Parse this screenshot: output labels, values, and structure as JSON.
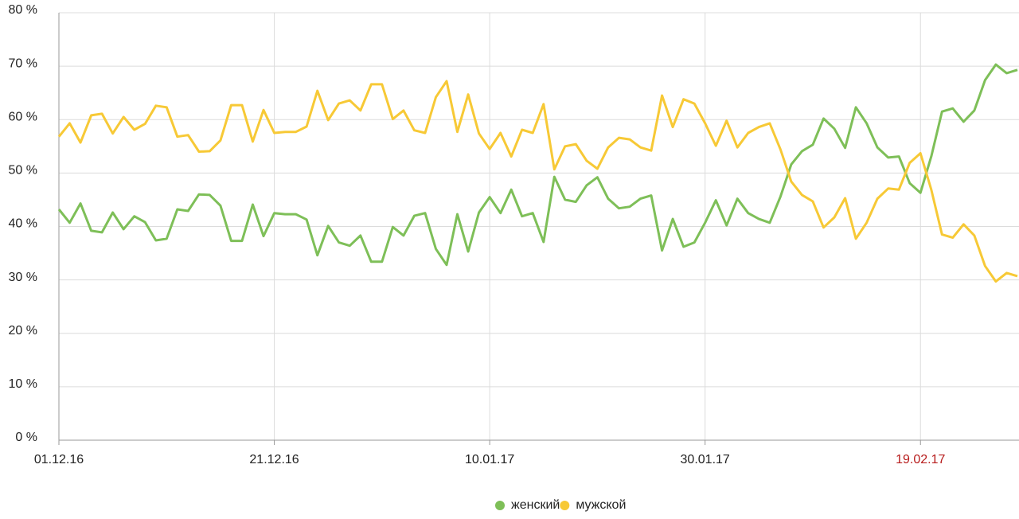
{
  "chart_data": {
    "type": "line",
    "categories": [
      "01.12.16",
      null,
      null,
      null,
      null,
      null,
      null,
      null,
      null,
      null,
      null,
      null,
      null,
      null,
      null,
      null,
      null,
      null,
      null,
      null,
      "21.12.16",
      null,
      null,
      null,
      null,
      null,
      null,
      null,
      null,
      null,
      null,
      null,
      null,
      null,
      null,
      null,
      null,
      null,
      null,
      null,
      "10.01.17",
      null,
      null,
      null,
      null,
      null,
      null,
      null,
      null,
      null,
      null,
      null,
      null,
      null,
      null,
      null,
      null,
      null,
      null,
      null,
      "30.01.17",
      null,
      null,
      null,
      null,
      null,
      null,
      null,
      null,
      null,
      null,
      null,
      null,
      null,
      null,
      null,
      null,
      null,
      null,
      null,
      "19.02.17",
      null,
      null,
      null,
      null,
      null,
      null,
      null,
      null,
      null
    ],
    "highlighted_categories": [
      80
    ],
    "highlight_color": "#b71c1c",
    "series": [
      {
        "name": "женский",
        "color": "#7ebf58",
        "values": [
          43.2,
          40.7,
          44.3,
          39.2,
          38.9,
          42.6,
          39.5,
          41.9,
          40.8,
          37.4,
          37.7,
          43.2,
          42.9,
          46.0,
          45.9,
          43.9,
          37.3,
          37.3,
          44.1,
          38.2,
          42.5,
          42.3,
          42.3,
          41.3,
          34.6,
          40.1,
          37.0,
          36.4,
          38.3,
          33.4,
          33.4,
          39.9,
          38.3,
          42.0,
          42.5,
          35.8,
          32.8,
          42.3,
          35.3,
          42.6,
          45.5,
          42.5,
          46.9,
          41.9,
          42.5,
          37.1,
          49.3,
          45.0,
          44.6,
          47.7,
          49.2,
          45.2,
          43.4,
          43.7,
          45.2,
          45.8,
          35.5,
          41.4,
          36.2,
          37.0,
          40.7,
          44.9,
          40.2,
          45.2,
          42.5,
          41.4,
          40.7,
          45.6,
          51.6,
          54.1,
          55.3,
          60.2,
          58.3,
          54.7,
          62.3,
          59.3,
          54.8,
          52.9,
          53.1,
          48.1,
          46.3,
          53.1,
          61.5,
          62.1,
          59.6,
          61.7,
          67.4,
          70.3,
          68.7,
          69.3
        ]
      },
      {
        "name": "мужской",
        "color": "#f7c936",
        "values": [
          56.8,
          59.3,
          55.7,
          60.8,
          61.1,
          57.4,
          60.5,
          58.1,
          59.2,
          62.6,
          62.3,
          56.8,
          57.1,
          54.0,
          54.1,
          56.1,
          62.7,
          62.7,
          55.9,
          61.8,
          57.5,
          57.7,
          57.7,
          58.7,
          65.4,
          59.9,
          63.0,
          63.6,
          61.7,
          66.6,
          66.6,
          60.1,
          61.7,
          58.0,
          57.5,
          64.2,
          67.2,
          57.7,
          64.7,
          57.4,
          54.5,
          57.5,
          53.1,
          58.1,
          57.5,
          62.9,
          50.7,
          55.0,
          55.4,
          52.3,
          50.8,
          54.8,
          56.6,
          56.3,
          54.8,
          54.2,
          64.5,
          58.6,
          63.8,
          63.0,
          59.3,
          55.1,
          59.8,
          54.8,
          57.5,
          58.6,
          59.3,
          54.4,
          48.4,
          45.9,
          44.7,
          39.8,
          41.7,
          45.3,
          37.7,
          40.7,
          45.2,
          47.1,
          46.9,
          51.9,
          53.7,
          46.9,
          38.5,
          37.9,
          40.4,
          38.3,
          32.6,
          29.7,
          31.3,
          30.7
        ]
      }
    ],
    "ylim": [
      0,
      80
    ],
    "yticks": [
      {
        "value": 0,
        "label": "0 %"
      },
      {
        "value": 10,
        "label": "10 %"
      },
      {
        "value": 20,
        "label": "20 %"
      },
      {
        "value": 30,
        "label": "30 %"
      },
      {
        "value": 40,
        "label": "40 %"
      },
      {
        "value": 50,
        "label": "50 %"
      },
      {
        "value": 60,
        "label": "60 %"
      },
      {
        "value": 70,
        "label": "70 %"
      },
      {
        "value": 80,
        "label": "80 %"
      }
    ],
    "grid": true,
    "legend": "bottom"
  }
}
